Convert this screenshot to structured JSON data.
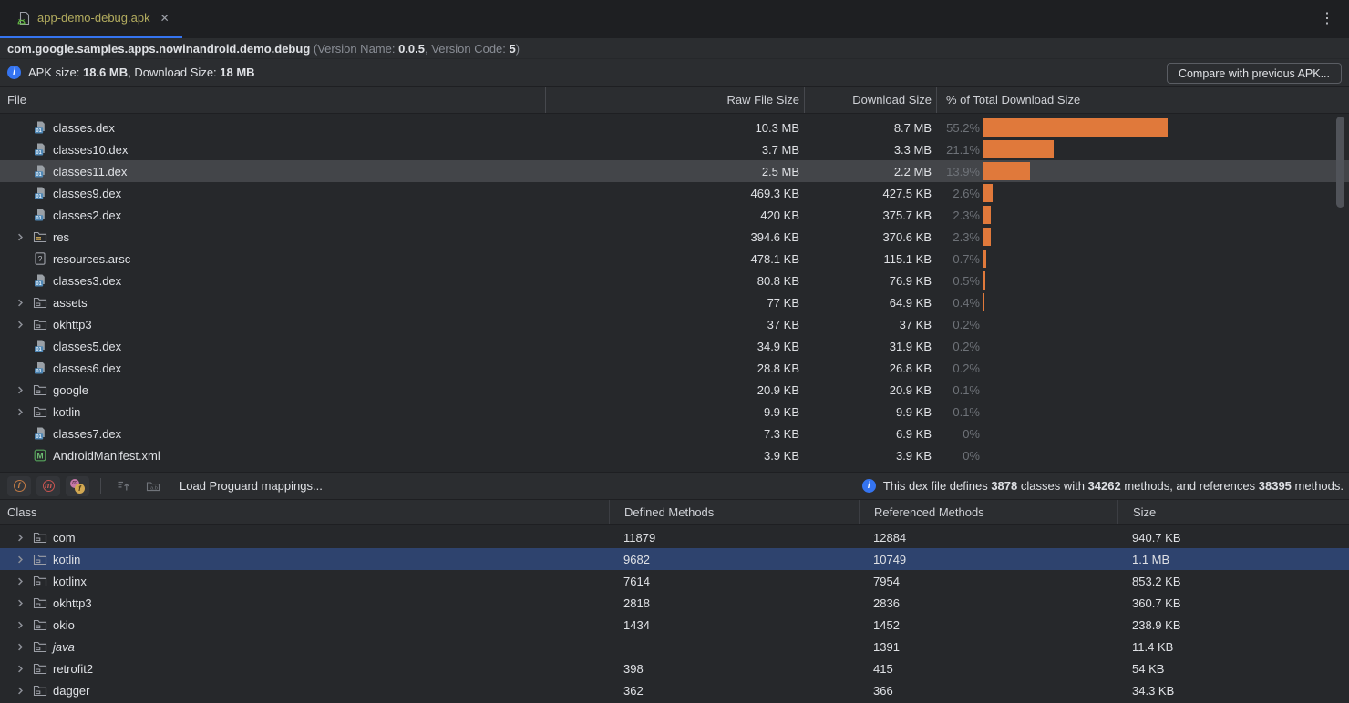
{
  "tab": {
    "title": "app-demo-debug.apk",
    "close_icon": "✕",
    "more_icon": "⋮"
  },
  "header": {
    "package_segments": [
      {
        "t": "com.google.samples.apps.nowinandroid.demo.debug",
        "b": 1
      },
      {
        "t": " (Version Name: ",
        "dim": 1
      },
      {
        "t": "0.0.5",
        "b": 1
      },
      {
        "t": ", Version Code: ",
        "dim": 1
      },
      {
        "t": "5",
        "b": 1
      },
      {
        "t": ")",
        "dim": 1
      }
    ],
    "apk_info_segments": [
      {
        "t": "APK size: "
      },
      {
        "t": "18.6 MB",
        "b": 1
      },
      {
        "t": ", Download Size: "
      },
      {
        "t": "18 MB",
        "b": 1
      }
    ],
    "compare_button_label": "Compare with previous APK..."
  },
  "apk_table": {
    "columns": [
      "File",
      "Raw File Size",
      "Download Size",
      "% of Total Download Size"
    ],
    "rows": [
      {
        "name": "classes.dex",
        "icon": "dex",
        "raw": "10.3 MB",
        "download": "8.7 MB",
        "pct": "55.2%",
        "pct_value": 55.2
      },
      {
        "name": "classes10.dex",
        "icon": "dex",
        "raw": "3.7 MB",
        "download": "3.3 MB",
        "pct": "21.1%",
        "pct_value": 21.1
      },
      {
        "name": "classes11.dex",
        "icon": "dex",
        "raw": "2.5 MB",
        "download": "2.2 MB",
        "pct": "13.9%",
        "pct_value": 13.9,
        "selected": true
      },
      {
        "name": "classes9.dex",
        "icon": "dex",
        "raw": "469.3 KB",
        "download": "427.5 KB",
        "pct": "2.6%",
        "pct_value": 2.6
      },
      {
        "name": "classes2.dex",
        "icon": "dex",
        "raw": "420 KB",
        "download": "375.7 KB",
        "pct": "2.3%",
        "pct_value": 2.3
      },
      {
        "name": "res",
        "icon": "resfolder",
        "expandable": true,
        "raw": "394.6 KB",
        "download": "370.6 KB",
        "pct": "2.3%",
        "pct_value": 2.3
      },
      {
        "name": "resources.arsc",
        "icon": "arsc",
        "raw": "478.1 KB",
        "download": "115.1 KB",
        "pct": "0.7%",
        "pct_value": 0.7
      },
      {
        "name": "classes3.dex",
        "icon": "dex",
        "raw": "80.8 KB",
        "download": "76.9 KB",
        "pct": "0.5%",
        "pct_value": 0.5
      },
      {
        "name": "assets",
        "icon": "folder",
        "expandable": true,
        "raw": "77 KB",
        "download": "64.9 KB",
        "pct": "0.4%",
        "pct_value": 0.4
      },
      {
        "name": "okhttp3",
        "icon": "folder",
        "expandable": true,
        "raw": "37 KB",
        "download": "37 KB",
        "pct": "0.2%",
        "pct_value": 0.2
      },
      {
        "name": "classes5.dex",
        "icon": "dex",
        "raw": "34.9 KB",
        "download": "31.9 KB",
        "pct": "0.2%",
        "pct_value": 0.2
      },
      {
        "name": "classes6.dex",
        "icon": "dex",
        "raw": "28.8 KB",
        "download": "26.8 KB",
        "pct": "0.2%",
        "pct_value": 0.2
      },
      {
        "name": "google",
        "icon": "folder",
        "expandable": true,
        "raw": "20.9 KB",
        "download": "20.9 KB",
        "pct": "0.1%",
        "pct_value": 0.1
      },
      {
        "name": "kotlin",
        "icon": "folder",
        "expandable": true,
        "raw": "9.9 KB",
        "download": "9.9 KB",
        "pct": "0.1%",
        "pct_value": 0.1
      },
      {
        "name": "classes7.dex",
        "icon": "dex",
        "raw": "7.3 KB",
        "download": "6.9 KB",
        "pct": "0%",
        "pct_value": 0
      },
      {
        "name": "AndroidManifest.xml",
        "icon": "manifest",
        "raw": "3.9 KB",
        "download": "3.9 KB",
        "pct": "0%",
        "pct_value": 0
      }
    ]
  },
  "toolbar": {
    "load_mappings_label": "Load Proguard mappings...",
    "dex_info_segments": [
      {
        "t": "This dex file defines "
      },
      {
        "t": "3878",
        "b": 1
      },
      {
        "t": " classes with "
      },
      {
        "t": "34262",
        "b": 1
      },
      {
        "t": " methods, and references "
      },
      {
        "t": "38395",
        "b": 1
      },
      {
        "t": " methods.",
        "b": 0
      }
    ]
  },
  "class_table": {
    "columns": [
      "Class",
      "Defined Methods",
      "Referenced Methods",
      "Size"
    ],
    "rows": [
      {
        "name": "com",
        "defined": "11879",
        "referenced": "12884",
        "size": "940.7 KB"
      },
      {
        "name": "kotlin",
        "defined": "9682",
        "referenced": "10749",
        "size": "1.1 MB",
        "selected": true
      },
      {
        "name": "kotlinx",
        "defined": "7614",
        "referenced": "7954",
        "size": "853.2 KB"
      },
      {
        "name": "okhttp3",
        "defined": "2818",
        "referenced": "2836",
        "size": "360.7 KB"
      },
      {
        "name": "okio",
        "defined": "1434",
        "referenced": "1452",
        "size": "238.9 KB"
      },
      {
        "name": "java",
        "defined": "",
        "referenced": "1391",
        "size": "11.4 KB",
        "italic": true
      },
      {
        "name": "retrofit2",
        "defined": "398",
        "referenced": "415",
        "size": "54 KB"
      },
      {
        "name": "dagger",
        "defined": "362",
        "referenced": "366",
        "size": "34.3 KB"
      }
    ]
  },
  "colors": {
    "accent_blue": "#3574f0",
    "bar_orange": "#e0793b",
    "selected_row_blue": "#2e436e",
    "selected_row_gray": "#434549",
    "tab_filename_yellow": "#b3ac5f"
  }
}
